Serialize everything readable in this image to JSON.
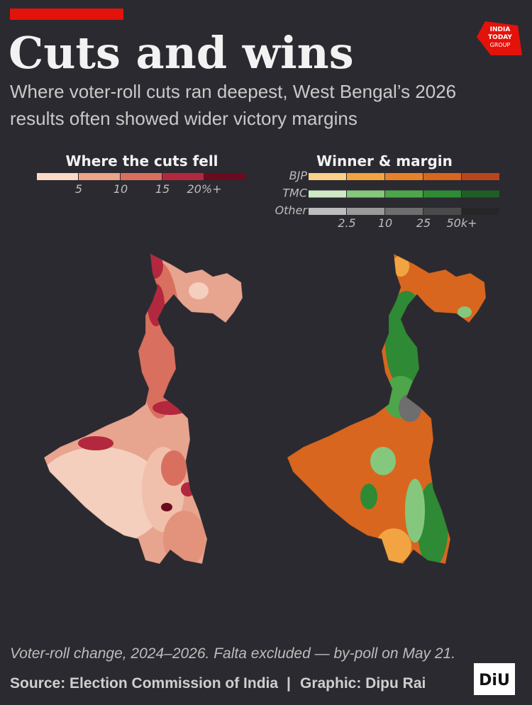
{
  "header": {
    "title": "Cuts and wins",
    "subtitle_lines": [
      "Where voter-roll cuts ran deepest, West Bengal’s 2026",
      "results often showed wider victory margins"
    ]
  },
  "logo": {
    "lines": [
      "INDIA",
      "TODAY",
      "GROUP"
    ]
  },
  "legend_cuts": {
    "title": "Where the cuts fell",
    "colors": [
      "#fbd9c6",
      "#eda48a",
      "#d9705f",
      "#b3283e",
      "#6b0b1f"
    ],
    "labels": [
      "5",
      "10",
      "15",
      "20%+"
    ]
  },
  "legend_winner": {
    "title": "Winner & margin",
    "rows": [
      {
        "name": "BJP",
        "colors": [
          "#fbd08a",
          "#f2a442",
          "#e8822a",
          "#d9661f",
          "#b8461a"
        ]
      },
      {
        "name": "TMC",
        "colors": [
          "#cfe9c6",
          "#86c77e",
          "#4ea64a",
          "#2e8a35",
          "#1f5e25"
        ]
      },
      {
        "name": "Other",
        "colors": [
          "#bdbdbd",
          "#9a9a9a",
          "#6e6e6e",
          "#4a4a4a",
          "#262626"
        ]
      }
    ],
    "labels": [
      "2.5",
      "10",
      "25",
      "50k+"
    ]
  },
  "footer": {
    "note": "Voter-roll change, 2024–2026. Falta excluded — by-poll on May 21.",
    "source": "Source: Election Commission of India",
    "separator": "|",
    "credit": "Graphic: Dipu Rai",
    "brand": "DiU"
  }
}
